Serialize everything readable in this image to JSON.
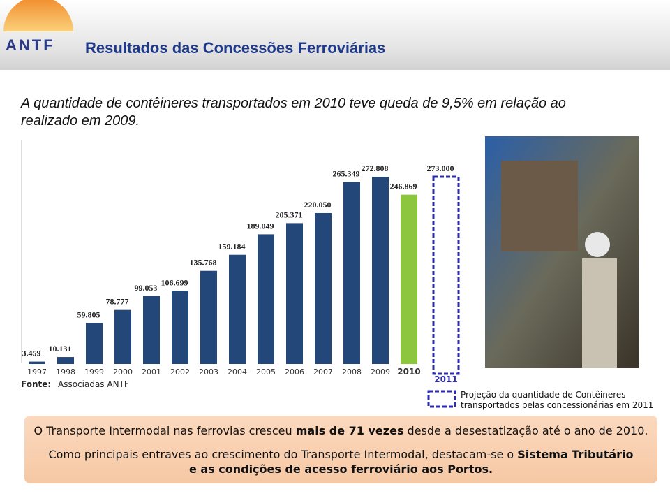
{
  "header": {
    "logo": "ANTF",
    "title": "Resultados das Concessões Ferroviárias"
  },
  "subtitle": "A quantidade de contêineres transportados  em 2010 teve queda de 9,5% em relação ao realizado em 2009.",
  "chart_data": {
    "type": "bar",
    "categories": [
      "1997",
      "1998",
      "1999",
      "2000",
      "2001",
      "2002",
      "2003",
      "2004",
      "2005",
      "2006",
      "2007",
      "2008",
      "2009",
      "2010",
      "2011"
    ],
    "values": [
      3459,
      10131,
      59805,
      78777,
      99053,
      106699,
      135768,
      159184,
      189049,
      205371,
      220050,
      265349,
      272808,
      246869,
      273000
    ],
    "value_labels": [
      "3.459",
      "10.131",
      "59.805",
      "78.777",
      "99.053",
      "106.699",
      "135.768",
      "159.184",
      "189.049",
      "205.371",
      "220.050",
      "265.349",
      "272.808",
      "246.869",
      "273.000"
    ],
    "bar_fill": [
      "#24477a",
      "#24477a",
      "#24477a",
      "#24477a",
      "#24477a",
      "#24477a",
      "#24477a",
      "#24477a",
      "#24477a",
      "#24477a",
      "#24477a",
      "#24477a",
      "#24477a",
      "#8cc63f",
      "none"
    ],
    "bar_stroke": "#2b2bb0",
    "ylim": [
      0,
      273000
    ],
    "source_label": "Fonte:",
    "source": "Associadas ANTF",
    "legend": "Projeção da quantidade de Contêineres transportados pelas concessionárias em 2011"
  },
  "footer": {
    "line1": [
      {
        "text": "O Transporte Intermodal nas ferrovias cresceu ",
        "bold": false
      },
      {
        "text": "mais de 71 vezes",
        "bold": true
      },
      {
        "text": " desde a desestatização até o ano de 2010.",
        "bold": false
      }
    ],
    "line2": [
      {
        "text": "Como principais entraves ao crescimento do Transporte Intermodal, destacam-se o ",
        "bold": false
      },
      {
        "text": "Sistema Tributário e as condições de acesso ferroviário aos Portos.",
        "bold": true
      }
    ]
  }
}
